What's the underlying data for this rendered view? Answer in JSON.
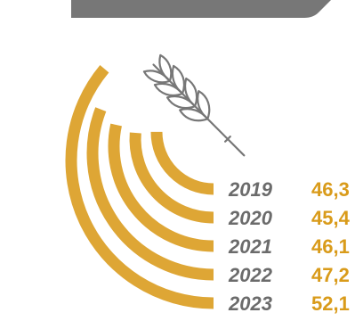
{
  "chart_data": {
    "type": "bar",
    "subtype": "radial-arc",
    "categories": [
      "2019",
      "2020",
      "2021",
      "2022",
      "2023"
    ],
    "value_labels": [
      "46,3",
      "45,4",
      "46,1",
      "47,2",
      "52,1"
    ],
    "values": [
      46.3,
      45.4,
      46.1,
      47.2,
      52.1
    ],
    "title": "",
    "xlabel": "",
    "ylabel": "",
    "legend": "none",
    "grid": false
  },
  "colors": {
    "arc": "#DEA635",
    "year_text": "#6B6B6B",
    "value_text": "#D99B1A",
    "header_band": "#777777",
    "wheat_icon": "#777777"
  },
  "icons": {
    "wheat": "wheat-icon"
  }
}
